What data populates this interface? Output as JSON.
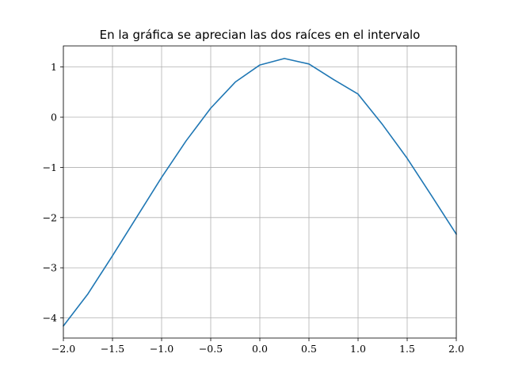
{
  "chart_data": {
    "type": "line",
    "title": "En la gráfica se aprecian las dos raíces en el intervalo",
    "xlabel": "",
    "ylabel": "",
    "xlim": [
      -2.0,
      2.0
    ],
    "ylim": [
      -4.4,
      1.42
    ],
    "grid": true,
    "x_ticks": [
      {
        "value": -2.0,
        "label": "−2.0"
      },
      {
        "value": -1.5,
        "label": "−1.5"
      },
      {
        "value": -1.0,
        "label": "−1.0"
      },
      {
        "value": -0.5,
        "label": "−0.5"
      },
      {
        "value": 0.0,
        "label": "0.0"
      },
      {
        "value": 0.5,
        "label": "0.5"
      },
      {
        "value": 1.0,
        "label": "1.0"
      },
      {
        "value": 1.5,
        "label": "1.5"
      },
      {
        "value": 2.0,
        "label": "2.0"
      }
    ],
    "y_ticks": [
      {
        "value": 1,
        "label": "1"
      },
      {
        "value": 0,
        "label": "0"
      },
      {
        "value": -1,
        "label": "−1"
      },
      {
        "value": -2,
        "label": "−2"
      },
      {
        "value": -3,
        "label": "−3"
      },
      {
        "value": -4,
        "label": "−4"
      }
    ],
    "series": [
      {
        "color": "#1f77b4",
        "x": [
          -2.0,
          -1.75,
          -1.5,
          -1.25,
          -1.0,
          -0.75,
          -0.5,
          -0.25,
          0.0,
          0.25,
          0.5,
          0.75,
          1.0,
          1.25,
          1.5,
          1.75,
          2.0
        ],
        "y": [
          -4.16,
          -3.52,
          -2.76,
          -1.98,
          -1.2,
          -0.47,
          0.18,
          0.7,
          1.04,
          1.17,
          1.06,
          0.75,
          0.46,
          -0.15,
          -0.82,
          -1.57,
          -2.33
        ]
      }
    ]
  }
}
